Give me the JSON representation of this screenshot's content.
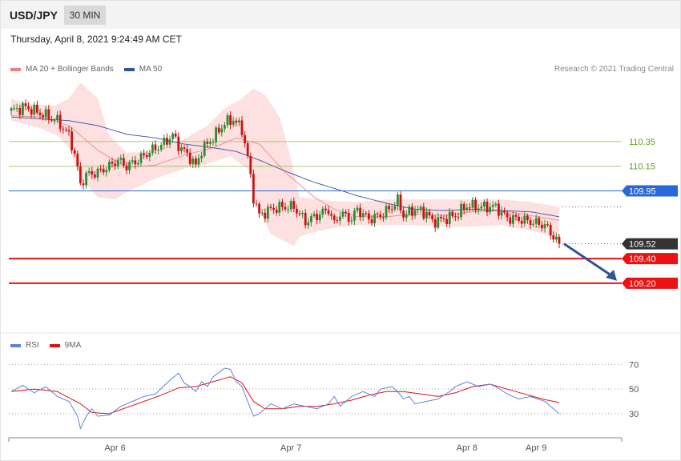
{
  "header": {
    "symbol": "USD/JPY",
    "timeframe": "30 MIN",
    "datetime": "Thursday, April 8, 2021 9:24:49 AM CET",
    "credit": "Research © 2021 Trading Central"
  },
  "legend_main": [
    {
      "label": "MA 20 + Bollinger Bands",
      "color": "#f08080"
    },
    {
      "label": "MA 50",
      "color": "#2f5597"
    }
  ],
  "legend_rsi": [
    {
      "label": "RSI",
      "color": "#5b84d6"
    },
    {
      "label": "9MA",
      "color": "#e01010"
    }
  ],
  "colors": {
    "bull": "#2e8b2e",
    "bear": "#cc1111",
    "band": "#fde0e0",
    "ma20": "#f09090",
    "ma50": "#4a5fb0",
    "green_level": "#8bc34a",
    "blue_level": "#2a67d8",
    "red_level": "#ee1111",
    "current": "#333333",
    "rsi": "#5b84d6",
    "rsi_ma": "#e01010",
    "arrow": "#2f5597"
  },
  "chart_data": [
    {
      "type": "candlestick",
      "title": "",
      "y_range": [
        108.9,
        110.85
      ],
      "x_ticks": [
        "Apr 6",
        "Apr 7",
        "Apr 8",
        "Apr 9"
      ],
      "x_tick_index": [
        36,
        97,
        158,
        182
      ],
      "levels": [
        {
          "value": 110.35,
          "label": "110.35",
          "style": "green-line"
        },
        {
          "value": 110.15,
          "label": "110.15",
          "style": "green-line"
        },
        {
          "value": 109.95,
          "label": "109.95",
          "style": "blue-line"
        },
        {
          "value": 109.52,
          "label": "109.52",
          "style": "current"
        },
        {
          "value": 109.4,
          "label": "109.40",
          "style": "red-line"
        },
        {
          "value": 109.2,
          "label": "109.20",
          "style": "red-line"
        }
      ],
      "projection": {
        "from": 109.52,
        "to": 109.2
      },
      "keypoints": [
        [
          0,
          110.6
        ],
        [
          5,
          110.63
        ],
        [
          10,
          110.58
        ],
        [
          16,
          110.52
        ],
        [
          20,
          110.4
        ],
        [
          22,
          110.25
        ],
        [
          24,
          110.0
        ],
        [
          26,
          110.08
        ],
        [
          30,
          110.1
        ],
        [
          34,
          110.15
        ],
        [
          37,
          110.2
        ],
        [
          40,
          110.15
        ],
        [
          44,
          110.2
        ],
        [
          48,
          110.27
        ],
        [
          52,
          110.32
        ],
        [
          56,
          110.4
        ],
        [
          58,
          110.32
        ],
        [
          62,
          110.22
        ],
        [
          64,
          110.15
        ],
        [
          66,
          110.28
        ],
        [
          70,
          110.38
        ],
        [
          74,
          110.5
        ],
        [
          77,
          110.53
        ],
        [
          80,
          110.45
        ],
        [
          82,
          110.22
        ],
        [
          84,
          109.9
        ],
        [
          86,
          109.75
        ],
        [
          90,
          109.8
        ],
        [
          94,
          109.82
        ],
        [
          98,
          109.82
        ],
        [
          102,
          109.7
        ],
        [
          106,
          109.75
        ],
        [
          110,
          109.8
        ],
        [
          112,
          109.68
        ],
        [
          114,
          109.77
        ],
        [
          118,
          109.72
        ],
        [
          120,
          109.8
        ],
        [
          124,
          109.72
        ],
        [
          128,
          109.75
        ],
        [
          132,
          109.82
        ],
        [
          134,
          109.87
        ],
        [
          136,
          109.75
        ],
        [
          140,
          109.8
        ],
        [
          144,
          109.77
        ],
        [
          146,
          109.7
        ],
        [
          150,
          109.72
        ],
        [
          154,
          109.75
        ],
        [
          158,
          109.83
        ],
        [
          162,
          109.82
        ],
        [
          166,
          109.82
        ],
        [
          168,
          109.82
        ],
        [
          172,
          109.73
        ],
        [
          176,
          109.72
        ],
        [
          180,
          109.7
        ],
        [
          185,
          109.67
        ],
        [
          190,
          109.52
        ]
      ],
      "ma20": [
        [
          0,
          110.56
        ],
        [
          10,
          110.55
        ],
        [
          20,
          110.48
        ],
        [
          30,
          110.28
        ],
        [
          40,
          110.14
        ],
        [
          50,
          110.16
        ],
        [
          60,
          110.24
        ],
        [
          70,
          110.3
        ],
        [
          78,
          110.38
        ],
        [
          86,
          110.33
        ],
        [
          95,
          110.1
        ],
        [
          105,
          109.9
        ],
        [
          112,
          109.8
        ],
        [
          120,
          109.74
        ],
        [
          130,
          109.74
        ],
        [
          140,
          109.76
        ],
        [
          150,
          109.75
        ],
        [
          160,
          109.78
        ],
        [
          170,
          109.79
        ],
        [
          180,
          109.75
        ],
        [
          190,
          109.71
        ]
      ],
      "ma50": [
        [
          0,
          110.55
        ],
        [
          20,
          110.52
        ],
        [
          30,
          110.48
        ],
        [
          40,
          110.41
        ],
        [
          50,
          110.38
        ],
        [
          60,
          110.33
        ],
        [
          70,
          110.3
        ],
        [
          78,
          110.27
        ],
        [
          86,
          110.2
        ],
        [
          95,
          110.11
        ],
        [
          105,
          110.02
        ],
        [
          112,
          109.97
        ],
        [
          120,
          109.91
        ],
        [
          130,
          109.85
        ],
        [
          140,
          109.8
        ],
        [
          150,
          109.79
        ],
        [
          160,
          109.8
        ],
        [
          170,
          109.79
        ],
        [
          180,
          109.78
        ],
        [
          190,
          109.74
        ]
      ],
      "bb_upper": [
        [
          0,
          110.7
        ],
        [
          5,
          110.66
        ],
        [
          15,
          110.64
        ],
        [
          20,
          110.7
        ],
        [
          24,
          110.83
        ],
        [
          30,
          110.7
        ],
        [
          34,
          110.4
        ],
        [
          40,
          110.26
        ],
        [
          50,
          110.27
        ],
        [
          60,
          110.37
        ],
        [
          68,
          110.48
        ],
        [
          74,
          110.62
        ],
        [
          80,
          110.7
        ],
        [
          84,
          110.78
        ],
        [
          88,
          110.73
        ],
        [
          93,
          110.55
        ],
        [
          96,
          110.3
        ],
        [
          100,
          109.9
        ],
        [
          110,
          109.87
        ],
        [
          120,
          109.86
        ],
        [
          130,
          109.88
        ],
        [
          140,
          109.88
        ],
        [
          150,
          109.88
        ],
        [
          160,
          109.88
        ],
        [
          170,
          109.88
        ],
        [
          180,
          109.86
        ],
        [
          190,
          109.82
        ]
      ],
      "bb_lower": [
        [
          0,
          110.52
        ],
        [
          10,
          110.46
        ],
        [
          16,
          110.4
        ],
        [
          20,
          110.3
        ],
        [
          24,
          110.05
        ],
        [
          30,
          109.9
        ],
        [
          36,
          109.88
        ],
        [
          40,
          109.94
        ],
        [
          50,
          110.05
        ],
        [
          60,
          110.13
        ],
        [
          68,
          110.17
        ],
        [
          76,
          110.23
        ],
        [
          82,
          110.13
        ],
        [
          86,
          109.8
        ],
        [
          90,
          109.6
        ],
        [
          94,
          109.55
        ],
        [
          98,
          109.5
        ],
        [
          100,
          109.58
        ],
        [
          106,
          109.62
        ],
        [
          112,
          109.65
        ],
        [
          120,
          109.67
        ],
        [
          130,
          109.67
        ],
        [
          140,
          109.67
        ],
        [
          150,
          109.66
        ],
        [
          160,
          109.66
        ],
        [
          170,
          109.67
        ],
        [
          180,
          109.63
        ],
        [
          190,
          109.56
        ]
      ]
    },
    {
      "type": "line",
      "title": "",
      "y_range": [
        15,
        80
      ],
      "ticks": [
        70,
        50,
        30
      ],
      "series": [
        {
          "name": "RSI",
          "points": [
            [
              0,
              48
            ],
            [
              4,
              53
            ],
            [
              8,
              47
            ],
            [
              12,
              52
            ],
            [
              16,
              44
            ],
            [
              20,
              40
            ],
            [
              23,
              28
            ],
            [
              24,
              18
            ],
            [
              26,
              28
            ],
            [
              28,
              34
            ],
            [
              30,
              28
            ],
            [
              34,
              29
            ],
            [
              38,
              36
            ],
            [
              42,
              40
            ],
            [
              46,
              44
            ],
            [
              50,
              46
            ],
            [
              54,
              55
            ],
            [
              58,
              63
            ],
            [
              60,
              55
            ],
            [
              62,
              52
            ],
            [
              64,
              48
            ],
            [
              66,
              56
            ],
            [
              68,
              52
            ],
            [
              70,
              60
            ],
            [
              74,
              67
            ],
            [
              76,
              66
            ],
            [
              78,
              56
            ],
            [
              80,
              52
            ],
            [
              82,
              40
            ],
            [
              84,
              28
            ],
            [
              86,
              30
            ],
            [
              90,
              38
            ],
            [
              94,
              34
            ],
            [
              98,
              38
            ],
            [
              102,
              36
            ],
            [
              106,
              34
            ],
            [
              110,
              38
            ],
            [
              112,
              44
            ],
            [
              114,
              36
            ],
            [
              118,
              44
            ],
            [
              122,
              48
            ],
            [
              126,
              44
            ],
            [
              128,
              50
            ],
            [
              132,
              52
            ],
            [
              134,
              48
            ],
            [
              136,
              42
            ],
            [
              138,
              44
            ],
            [
              140,
              38
            ],
            [
              144,
              40
            ],
            [
              148,
              42
            ],
            [
              152,
              48
            ],
            [
              154,
              52
            ],
            [
              158,
              56
            ],
            [
              162,
              52
            ],
            [
              166,
              54
            ],
            [
              168,
              52
            ],
            [
              172,
              46
            ],
            [
              176,
              42
            ],
            [
              180,
              44
            ],
            [
              185,
              40
            ],
            [
              190,
              30
            ]
          ]
        },
        {
          "name": "9MA",
          "points": [
            [
              0,
              48
            ],
            [
              8,
              50
            ],
            [
              16,
              48
            ],
            [
              24,
              38
            ],
            [
              28,
              31
            ],
            [
              34,
              30
            ],
            [
              40,
              35
            ],
            [
              46,
              40
            ],
            [
              52,
              45
            ],
            [
              58,
              51
            ],
            [
              64,
              52
            ],
            [
              70,
              56
            ],
            [
              76,
              60
            ],
            [
              80,
              55
            ],
            [
              84,
              40
            ],
            [
              88,
              34
            ],
            [
              94,
              34
            ],
            [
              100,
              36
            ],
            [
              106,
              36
            ],
            [
              112,
              38
            ],
            [
              118,
              41
            ],
            [
              124,
              45
            ],
            [
              130,
              48
            ],
            [
              136,
              48
            ],
            [
              142,
              46
            ],
            [
              148,
              44
            ],
            [
              154,
              47
            ],
            [
              160,
              52
            ],
            [
              166,
              54
            ],
            [
              172,
              50
            ],
            [
              178,
              46
            ],
            [
              184,
              42
            ],
            [
              190,
              39
            ]
          ]
        }
      ]
    }
  ]
}
